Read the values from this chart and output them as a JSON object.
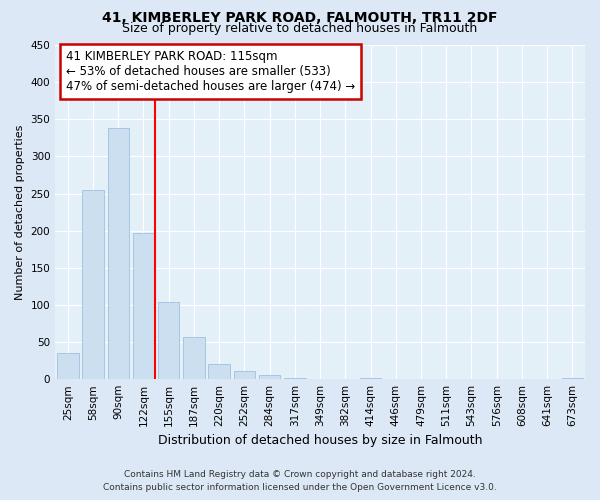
{
  "title": "41, KIMBERLEY PARK ROAD, FALMOUTH, TR11 2DF",
  "subtitle": "Size of property relative to detached houses in Falmouth",
  "xlabel": "Distribution of detached houses by size in Falmouth",
  "ylabel": "Number of detached properties",
  "bar_labels": [
    "25sqm",
    "58sqm",
    "90sqm",
    "122sqm",
    "155sqm",
    "187sqm",
    "220sqm",
    "252sqm",
    "284sqm",
    "317sqm",
    "349sqm",
    "382sqm",
    "414sqm",
    "446sqm",
    "479sqm",
    "511sqm",
    "543sqm",
    "576sqm",
    "608sqm",
    "641sqm",
    "673sqm"
  ],
  "bar_values": [
    35,
    255,
    338,
    197,
    104,
    57,
    21,
    11,
    5,
    2,
    0,
    0,
    1,
    0,
    0,
    0,
    0,
    0,
    0,
    0,
    2
  ],
  "bar_color": "#ccdff0",
  "bar_edge_color": "#a0c0e0",
  "vline_x": 3.47,
  "vline_color": "red",
  "annotation_title": "41 KIMBERLEY PARK ROAD: 115sqm",
  "annotation_line1": "← 53% of detached houses are smaller (533)",
  "annotation_line2": "47% of semi-detached houses are larger (474) →",
  "annotation_box_color": "white",
  "annotation_box_edge_color": "#cc0000",
  "ylim": [
    0,
    450
  ],
  "footnote1": "Contains HM Land Registry data © Crown copyright and database right 2024.",
  "footnote2": "Contains public sector information licensed under the Open Government Licence v3.0.",
  "background_color": "#dce8f5",
  "plot_bg_color": "#e4f0f8",
  "title_fontsize": 10,
  "subtitle_fontsize": 9,
  "ylabel_fontsize": 8,
  "xlabel_fontsize": 9,
  "tick_fontsize": 7.5,
  "footnote_fontsize": 6.5
}
